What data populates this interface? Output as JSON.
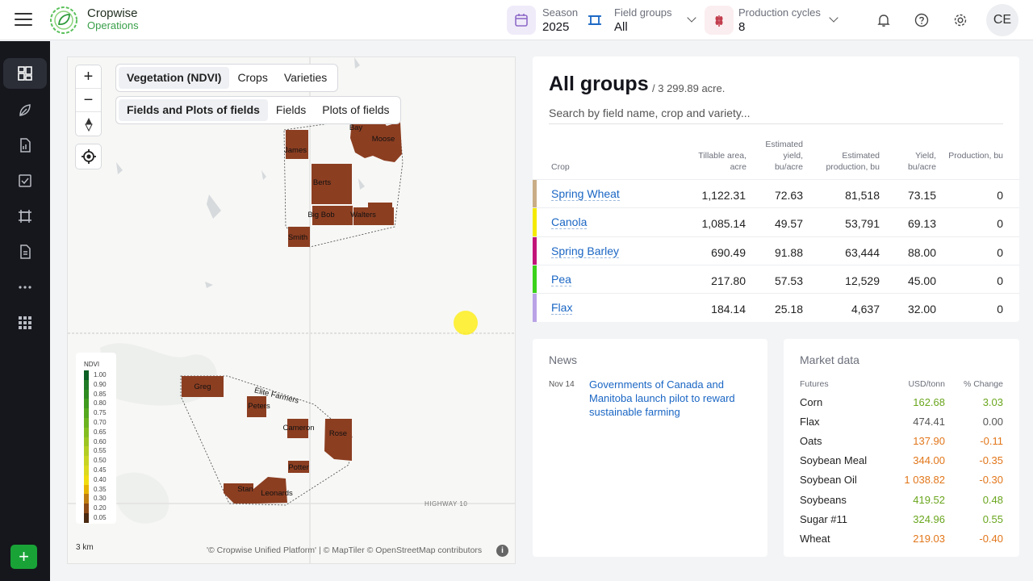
{
  "header": {
    "logo_line1": "Cropwise",
    "logo_line2": "Operations",
    "season_label": "Season",
    "season_value": "2025",
    "field_groups_label": "Field groups",
    "field_groups_value": "All",
    "production_cycles_label": "Production cycles",
    "production_cycles_value": "8",
    "avatar_initials": "CE"
  },
  "sidebar": {
    "items": [
      "dashboard-icon",
      "crops-icon",
      "reports-icon",
      "tasks-icon",
      "fields-icon",
      "documents-icon",
      "more-icon",
      "apps-icon"
    ],
    "add_label": "+"
  },
  "map": {
    "zoom_in": "+",
    "zoom_out": "−",
    "layer_tabs": [
      "Vegetation (NDVI)",
      "Crops",
      "Varieties"
    ],
    "layer_selected": "Vegetation (NDVI)",
    "view_tabs": [
      "Fields and Plots of fields",
      "Fields",
      "Plots of fields"
    ],
    "view_selected": "Fields and Plots of fields",
    "field_labels": [
      "Bay",
      "Moose",
      "James",
      "Berts",
      "Big Bob",
      "Walters",
      "Smith",
      "Greg",
      "Peters",
      "Cameron",
      "Rose",
      "Potter",
      "Stan",
      "Leonards"
    ],
    "group_label": "Elite Farmers",
    "road_label": "HIGHWAY 10",
    "legend_title": "NDVI",
    "legend_values": [
      "1.00",
      "0.90",
      "0.85",
      "0.80",
      "0.75",
      "0.70",
      "0.65",
      "0.60",
      "0.55",
      "0.50",
      "0.45",
      "0.40",
      "0.35",
      "0.30",
      "0.20",
      "0.05"
    ],
    "legend_colors": [
      "#0b5e24",
      "#1f7a25",
      "#2e8b1f",
      "#3f9a1e",
      "#54a81e",
      "#6bb31f",
      "#84bd20",
      "#9cc522",
      "#b4cd23",
      "#c9d422",
      "#dcd91f",
      "#f1dc10",
      "#e7b400",
      "#c07d10",
      "#8b4a16",
      "#4a2a10"
    ],
    "scale_label": "3 km",
    "attribution": "'© Cropwise Unified Platform' | © MapTiler © OpenStreetMap contributors",
    "info_label": "i"
  },
  "groups": {
    "title": "All groups",
    "subtitle": "/ 3 299.89 acre.",
    "search_placeholder": "Search by field name, crop and variety...",
    "columns": [
      "Crop",
      "Tillable area, acre",
      "Estimated yield, bu/acre",
      "Estimated production, bu",
      "Yield, bu/acre",
      "Production, bu"
    ],
    "rows": [
      {
        "crop": "Spring Wheat",
        "color": "#c9ad86",
        "area": "1,122.31",
        "est_yield": "72.63",
        "est_prod": "81,518",
        "yield": "73.15",
        "prod": "0"
      },
      {
        "crop": "Canola",
        "color": "#f4ea00",
        "area": "1,085.14",
        "est_yield": "49.57",
        "est_prod": "53,791",
        "yield": "69.13",
        "prod": "0"
      },
      {
        "crop": "Spring Barley",
        "color": "#c2157a",
        "area": "690.49",
        "est_yield": "91.88",
        "est_prod": "63,444",
        "yield": "88.00",
        "prod": "0"
      },
      {
        "crop": "Pea",
        "color": "#3bd21b",
        "area": "217.80",
        "est_yield": "57.53",
        "est_prod": "12,529",
        "yield": "45.00",
        "prod": "0"
      },
      {
        "crop": "Flax",
        "color": "#b9a3e6",
        "area": "184.14",
        "est_yield": "25.18",
        "est_prod": "4,637",
        "yield": "32.00",
        "prod": "0"
      }
    ]
  },
  "news": {
    "title": "News",
    "items": [
      {
        "date": "Nov 14",
        "headline": "Governments of Canada and Manitoba launch pilot to reward sustainable farming"
      }
    ]
  },
  "market": {
    "title": "Market data",
    "col_name": "Futures",
    "col_price": "USD/tonn",
    "col_change": "% Change",
    "rows": [
      {
        "name": "Corn",
        "price": "162.68",
        "change": "3.03",
        "color": "#6aa61e"
      },
      {
        "name": "Flax",
        "price": "474.41",
        "change": "0.00",
        "color": "#555555"
      },
      {
        "name": "Oats",
        "price": "137.90",
        "change": "-0.11",
        "color": "#e2761a"
      },
      {
        "name": "Soybean Meal",
        "price": "344.00",
        "change": "-0.35",
        "color": "#e2761a"
      },
      {
        "name": "Soybean Oil",
        "price": "1 038.82",
        "change": "-0.30",
        "color": "#e2761a"
      },
      {
        "name": "Soybeans",
        "price": "419.52",
        "change": "0.48",
        "color": "#6aa61e"
      },
      {
        "name": "Sugar #11",
        "price": "324.96",
        "change": "0.55",
        "color": "#6aa61e"
      },
      {
        "name": "Wheat",
        "price": "219.03",
        "change": "-0.40",
        "color": "#e2761a"
      }
    ]
  }
}
